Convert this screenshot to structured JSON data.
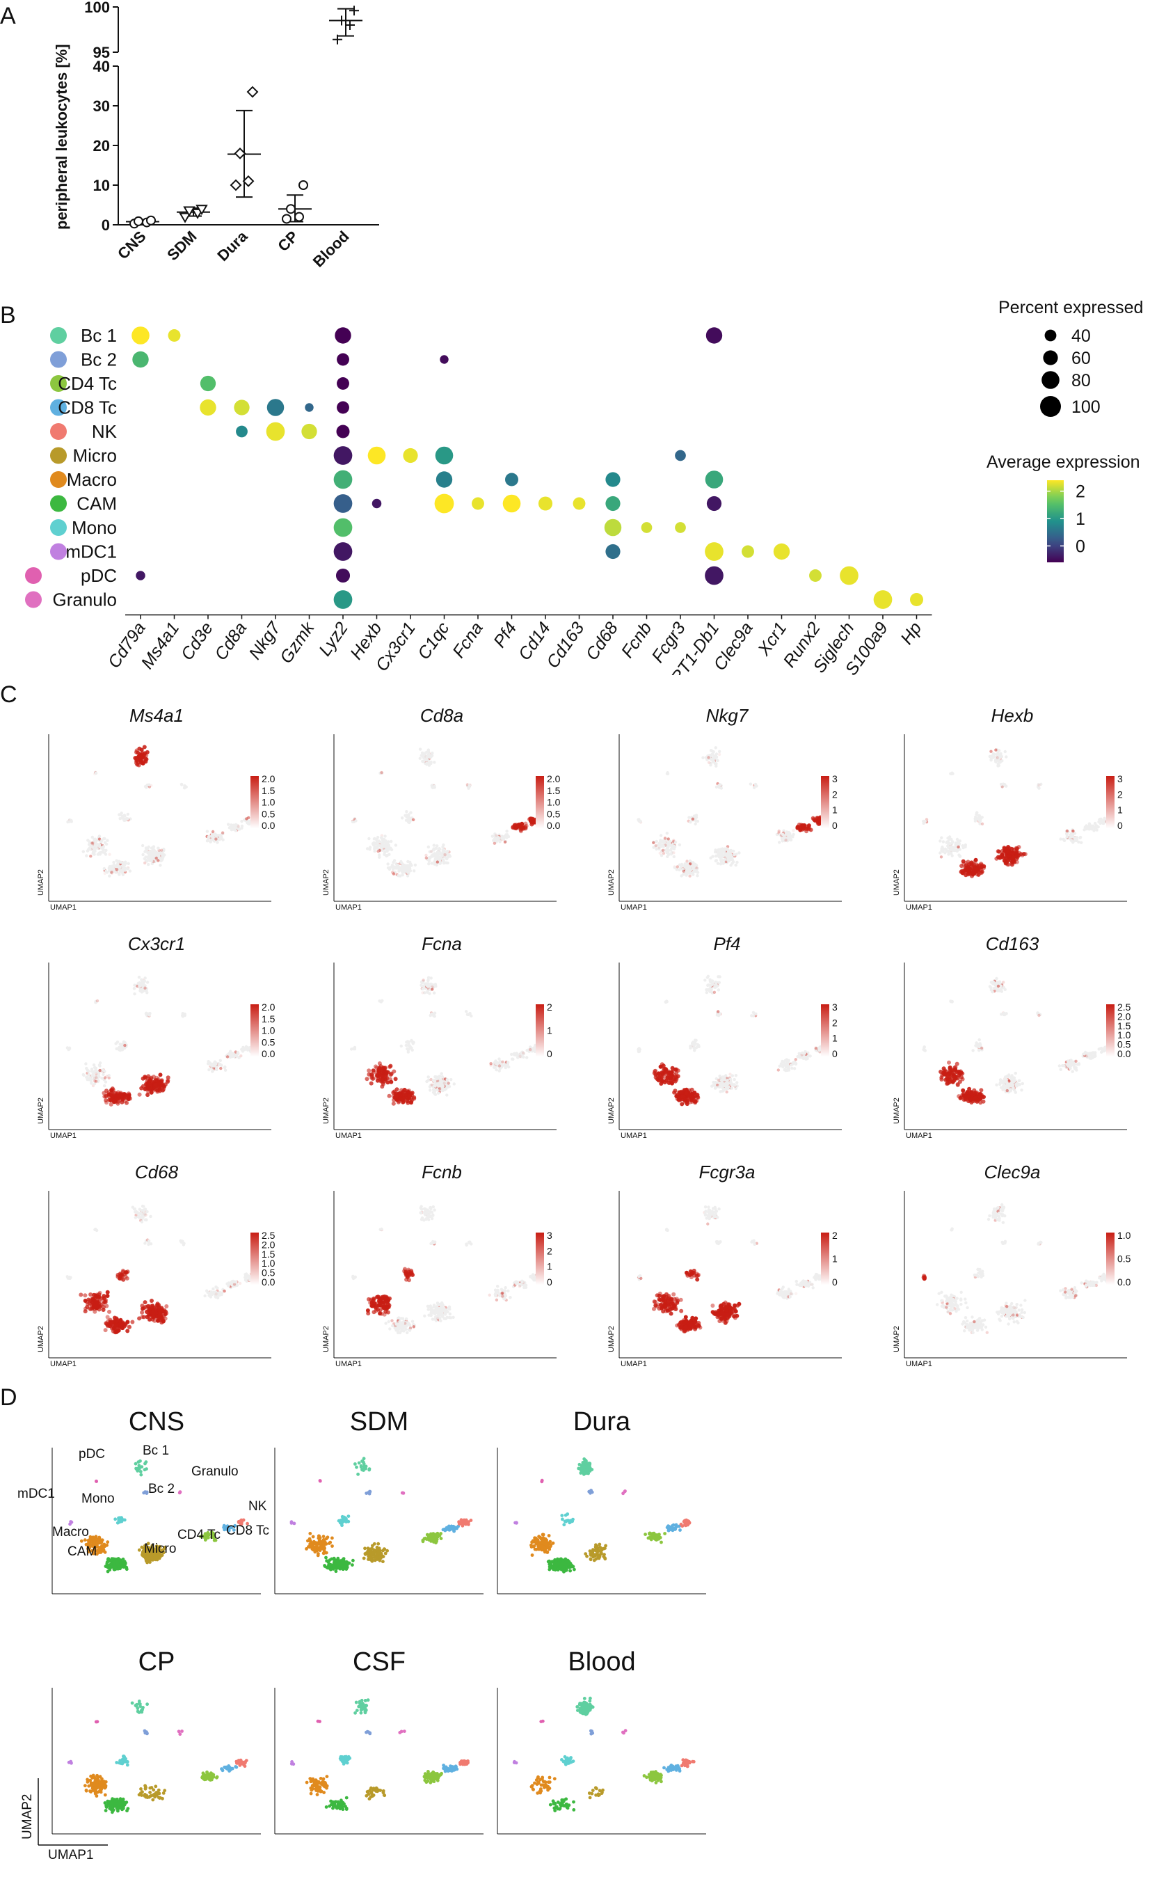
{
  "panels": {
    "a": "A",
    "b": "B",
    "c": "C",
    "d": "D"
  },
  "panel_a": {
    "chart_data": {
      "type": "scatter",
      "ylabel": "peripheral leukocytes [%]",
      "categories": [
        "CNS",
        "SDM",
        "Dura",
        "CP",
        "Blood"
      ],
      "y_ticks_lower": [
        "0",
        "10",
        "20",
        "30",
        "40"
      ],
      "y_ticks_upper": [
        "95",
        "100"
      ],
      "ylim_lower": [
        0,
        40
      ],
      "ylim_upper": [
        95,
        100
      ],
      "markers": [
        "circle",
        "triangle",
        "diamond",
        "circle",
        "cross"
      ],
      "points": [
        [
          0.3,
          0.6,
          0.9,
          1.1
        ],
        [
          2.0,
          3.0,
          3.6,
          4.0
        ],
        [
          10,
          11,
          18,
          33.5
        ],
        [
          1.5,
          2.0,
          4.0,
          10
        ],
        [
          96.4,
          98.0,
          98.5,
          99.6
        ]
      ],
      "mean": [
        0.8,
        3.2,
        17.8,
        4.0,
        98.5
      ],
      "sd_low": [
        0.2,
        2.2,
        7.0,
        0.8,
        96.8
      ],
      "sd_high": [
        1.2,
        4.2,
        28.8,
        7.5,
        99.8
      ]
    }
  },
  "panel_b": {
    "chart_data": {
      "type": "dotplot",
      "genes": [
        "Cd79a",
        "Ms4a1",
        "Cd3e",
        "Cd8a",
        "Nkg7",
        "Gzmk",
        "Lyz2",
        "Hexb",
        "Cx3cr1",
        "C1qc",
        "Fcna",
        "Pf4",
        "Cd14",
        "Cd163",
        "Cd68",
        "Fcnb",
        "Fcgr3",
        "RT1-Db1",
        "Clec9a",
        "Xcr1",
        "Runx2",
        "Siglech",
        "S100a9",
        "Hp"
      ],
      "cell_types": [
        {
          "name": "Bc 1",
          "color": "#5fcfa0"
        },
        {
          "name": "Bc 2",
          "color": "#7f9fd8"
        },
        {
          "name": "CD4 Tc",
          "color": "#8cc63f"
        },
        {
          "name": "CD8 Tc",
          "color": "#5fb0e0"
        },
        {
          "name": "NK",
          "color": "#f07a70"
        },
        {
          "name": "Micro",
          "color": "#b89a2a"
        },
        {
          "name": "Macro",
          "color": "#e08a1e"
        },
        {
          "name": "CAM",
          "color": "#3cb840"
        },
        {
          "name": "Mono",
          "color": "#5fd0d0"
        },
        {
          "name": "mDC1",
          "color": "#c080e0"
        },
        {
          "name": "pDC",
          "color": "#e060b0"
        },
        {
          "name": "Granulo",
          "color": "#e070c0"
        }
      ],
      "dots": [
        [
          0,
          0,
          80,
          2.4
        ],
        [
          0,
          1,
          45,
          2.3
        ],
        [
          0,
          6,
          70,
          -0.6
        ],
        [
          0,
          17,
          70,
          -0.5
        ],
        [
          1,
          0,
          70,
          1.4
        ],
        [
          1,
          6,
          45,
          -0.6
        ],
        [
          1,
          9,
          20,
          -0.5
        ],
        [
          2,
          2,
          65,
          1.5
        ],
        [
          2,
          6,
          45,
          -0.6
        ],
        [
          3,
          2,
          70,
          2.3
        ],
        [
          3,
          3,
          65,
          2.2
        ],
        [
          3,
          4,
          75,
          0.6
        ],
        [
          3,
          5,
          20,
          0.4
        ],
        [
          3,
          6,
          45,
          -0.6
        ],
        [
          4,
          3,
          40,
          0.8
        ],
        [
          4,
          4,
          85,
          2.3
        ],
        [
          4,
          5,
          65,
          2.2
        ],
        [
          4,
          6,
          50,
          -0.6
        ],
        [
          5,
          6,
          85,
          -0.4
        ],
        [
          5,
          7,
          80,
          2.4
        ],
        [
          5,
          8,
          60,
          2.3
        ],
        [
          5,
          9,
          80,
          1.0
        ],
        [
          5,
          16,
          35,
          0.4
        ],
        [
          6,
          6,
          85,
          1.3
        ],
        [
          6,
          9,
          70,
          0.7
        ],
        [
          6,
          11,
          50,
          0.6
        ],
        [
          6,
          14,
          60,
          0.8
        ],
        [
          6,
          17,
          80,
          1.2
        ],
        [
          7,
          6,
          85,
          0.3
        ],
        [
          7,
          7,
          25,
          -0.4
        ],
        [
          7,
          9,
          90,
          2.4
        ],
        [
          7,
          10,
          45,
          2.3
        ],
        [
          7,
          11,
          80,
          2.4
        ],
        [
          7,
          12,
          55,
          2.3
        ],
        [
          7,
          13,
          45,
          2.3
        ],
        [
          7,
          14,
          60,
          1.2
        ],
        [
          7,
          17,
          60,
          -0.4
        ],
        [
          8,
          6,
          85,
          1.5
        ],
        [
          8,
          14,
          75,
          2.1
        ],
        [
          8,
          15,
          35,
          2.2
        ],
        [
          8,
          16,
          35,
          2.2
        ],
        [
          9,
          6,
          85,
          -0.4
        ],
        [
          9,
          14,
          60,
          0.5
        ],
        [
          9,
          17,
          85,
          2.3
        ],
        [
          9,
          18,
          45,
          2.2
        ],
        [
          9,
          19,
          70,
          2.3
        ],
        [
          10,
          0,
          25,
          -0.4
        ],
        [
          10,
          6,
          55,
          -0.5
        ],
        [
          10,
          17,
          85,
          -0.4
        ],
        [
          10,
          20,
          45,
          2.2
        ],
        [
          10,
          21,
          85,
          2.3
        ],
        [
          11,
          6,
          85,
          1.0
        ],
        [
          11,
          22,
          85,
          2.3
        ],
        [
          11,
          23,
          50,
          2.3
        ]
      ],
      "legend_size": {
        "title": "Percent expressed",
        "values": [
          40,
          60,
          80,
          100
        ]
      },
      "legend_color": {
        "title": "Average expression",
        "ticks": [
          2,
          1,
          0
        ],
        "range": [
          -0.6,
          2.4
        ]
      }
    }
  },
  "panel_c": {
    "x_label": "UMAP1",
    "y_label": "UMAP2",
    "plots": [
      {
        "gene": "Ms4a1",
        "scale": [
          "2.0",
          "1.5",
          "1.0",
          "0.5",
          "0.0"
        ],
        "hot": "b"
      },
      {
        "gene": "Cd8a",
        "scale": [
          "2.0",
          "1.5",
          "1.0",
          "0.5",
          "0.0"
        ],
        "hot": "t"
      },
      {
        "gene": "Nkg7",
        "scale": [
          "3",
          "2",
          "1",
          "0"
        ],
        "hot": "t"
      },
      {
        "gene": "Hexb",
        "scale": [
          "3",
          "2",
          "1",
          "0"
        ],
        "hot": "m"
      },
      {
        "gene": "Cx3cr1",
        "scale": [
          "2.0",
          "1.5",
          "1.0",
          "0.5",
          "0.0"
        ],
        "hot": "m"
      },
      {
        "gene": "Fcna",
        "scale": [
          "2",
          "1",
          "0"
        ],
        "hot": "c"
      },
      {
        "gene": "Pf4",
        "scale": [
          "3",
          "2",
          "1",
          "0"
        ],
        "hot": "c"
      },
      {
        "gene": "Cd163",
        "scale": [
          "2.5",
          "2.0",
          "1.5",
          "1.0",
          "0.5",
          "0.0"
        ],
        "hot": "c"
      },
      {
        "gene": "Cd68",
        "scale": [
          "2.5",
          "2.0",
          "1.5",
          "1.0",
          "0.5",
          "0.0"
        ],
        "hot": "a"
      },
      {
        "gene": "Fcnb",
        "scale": [
          "3",
          "2",
          "1",
          "0"
        ],
        "hot": "n"
      },
      {
        "gene": "Fcgr3a",
        "scale": [
          "2",
          "1",
          "0"
        ],
        "hot": "a"
      },
      {
        "gene": "Clec9a",
        "scale": [
          "1.0",
          "0.5",
          "0.0"
        ],
        "hot": "d"
      }
    ]
  },
  "panel_d": {
    "x_label": "UMAP1",
    "y_label": "UMAP2",
    "tissues": [
      "CNS",
      "SDM",
      "Dura",
      "CP",
      "CSF",
      "Blood"
    ],
    "cluster_labels": [
      "pDC",
      "Bc 1",
      "Granulo",
      "Bc 2",
      "mDC1",
      "Mono",
      "NK",
      "Macro",
      "CD4 Tc",
      "CD8 Tc",
      "CAM",
      "Micro"
    ]
  }
}
